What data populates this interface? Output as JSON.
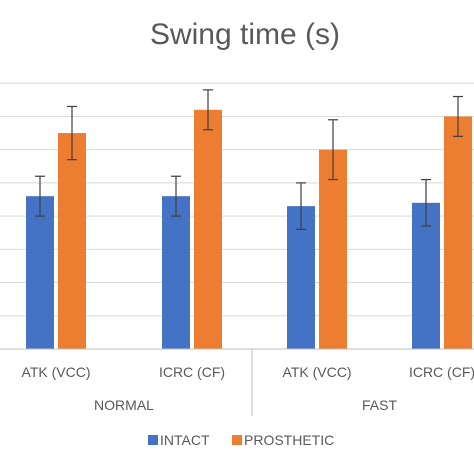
{
  "chart_data": {
    "type": "bar",
    "title": "Swing time (s)",
    "categories": [
      "ATK (VCC)",
      "ICRC (CF)",
      "ATK (VCC)",
      "ICRC (CF)"
    ],
    "groups": [
      {
        "label": "NORMAL",
        "span": [
          0,
          1
        ]
      },
      {
        "label": "FAST",
        "span": [
          2,
          3
        ]
      }
    ],
    "series": [
      {
        "name": "INTACT",
        "color": "#4472c4",
        "values": [
          0.46,
          0.46,
          0.43,
          0.44
        ],
        "errors": [
          0.06,
          0.06,
          0.07,
          0.07
        ]
      },
      {
        "name": "PROSTHETIC",
        "color": "#ed7d31",
        "values": [
          0.65,
          0.72,
          0.6,
          0.7
        ],
        "errors": [
          0.08,
          0.06,
          0.09,
          0.06
        ]
      }
    ],
    "ylim": [
      0,
      0.9
    ],
    "ytick_step": 0.1,
    "grid": true,
    "legend": "bottom"
  }
}
